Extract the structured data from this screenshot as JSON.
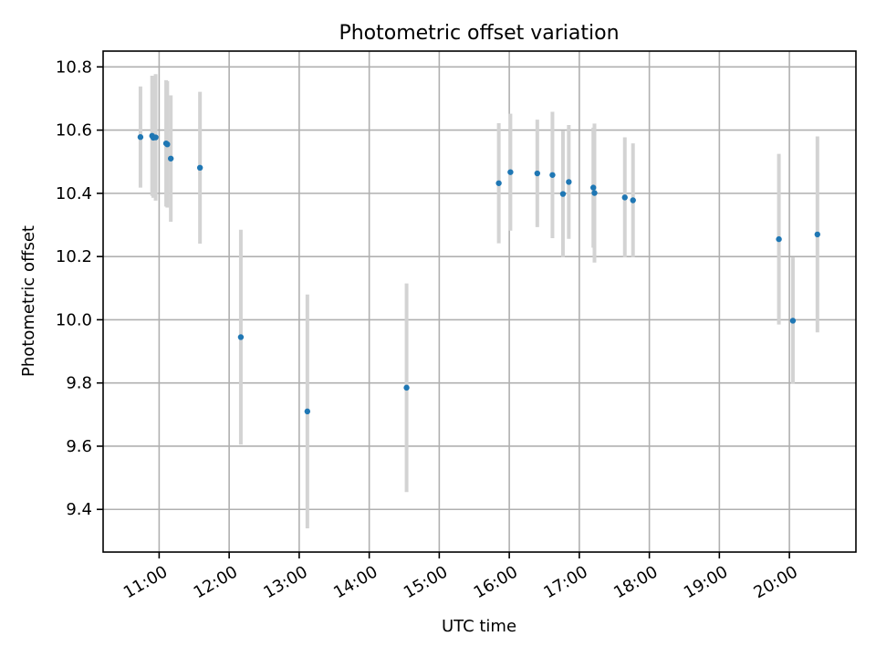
{
  "chart_data": {
    "type": "scatter",
    "title": "Photometric offset variation",
    "xlabel": "UTC time",
    "ylabel": "Photometric offset",
    "x_unit": "UTC time of day",
    "xlim": [
      "10:12",
      "20:57"
    ],
    "ylim": [
      9.265,
      10.85
    ],
    "x_ticks": [
      "11:00",
      "12:00",
      "13:00",
      "14:00",
      "15:00",
      "16:00",
      "17:00",
      "18:00",
      "19:00",
      "20:00"
    ],
    "y_ticks": [
      "9.4",
      "9.6",
      "9.8",
      "10.0",
      "10.2",
      "10.4",
      "10.6",
      "10.8"
    ],
    "grid": true,
    "colors": {
      "points": "#1f77b4",
      "errorbars": "#d3d3d3"
    },
    "series": [
      {
        "points": [
          {
            "x": "10:44",
            "y": 10.578,
            "yerr": 0.16
          },
          {
            "x": "10:54",
            "y": 10.582,
            "yerr": 0.19
          },
          {
            "x": "10:55",
            "y": 10.576,
            "yerr": 0.19
          },
          {
            "x": "10:57",
            "y": 10.577,
            "yerr": 0.2
          },
          {
            "x": "11:06",
            "y": 10.558,
            "yerr": 0.2
          },
          {
            "x": "11:07",
            "y": 10.555,
            "yerr": 0.2
          },
          {
            "x": "11:10",
            "y": 10.51,
            "yerr": 0.2
          },
          {
            "x": "11:35",
            "y": 10.481,
            "yerr": 0.24
          },
          {
            "x": "12:10",
            "y": 9.945,
            "yerr": 0.34
          },
          {
            "x": "13:07",
            "y": 9.71,
            "yerr": 0.37
          },
          {
            "x": "14:32",
            "y": 9.785,
            "yerr": 0.33
          },
          {
            "x": "15:51",
            "y": 10.432,
            "yerr": 0.19
          },
          {
            "x": "16:01",
            "y": 10.467,
            "yerr": 0.185
          },
          {
            "x": "16:24",
            "y": 10.463,
            "yerr": 0.17
          },
          {
            "x": "16:37",
            "y": 10.458,
            "yerr": 0.2
          },
          {
            "x": "16:46",
            "y": 10.398,
            "yerr": 0.2
          },
          {
            "x": "16:51",
            "y": 10.436,
            "yerr": 0.18
          },
          {
            "x": "17:12",
            "y": 10.418,
            "yerr": 0.19
          },
          {
            "x": "17:13",
            "y": 10.401,
            "yerr": 0.22
          },
          {
            "x": "17:39",
            "y": 10.387,
            "yerr": 0.19
          },
          {
            "x": "17:46",
            "y": 10.378,
            "yerr": 0.18
          },
          {
            "x": "19:51",
            "y": 10.255,
            "yerr": 0.27
          },
          {
            "x": "20:03",
            "y": 9.997,
            "yerr": 0.2
          },
          {
            "x": "20:24",
            "y": 10.27,
            "yerr": 0.31
          }
        ]
      }
    ]
  }
}
